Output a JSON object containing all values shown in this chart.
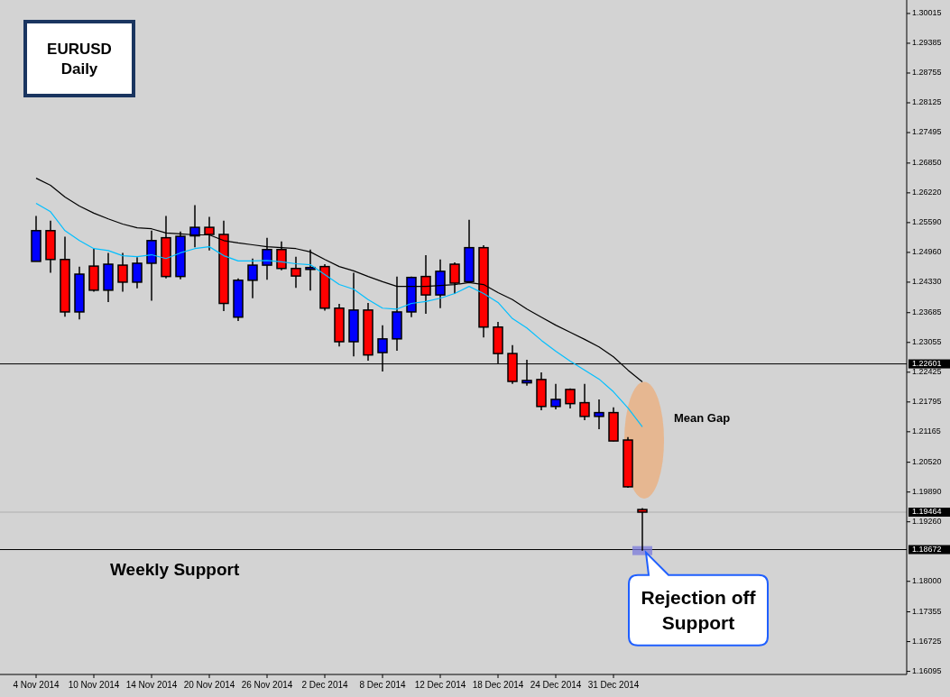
{
  "chart_data": {
    "type": "candlestick",
    "title": "EURUSD",
    "subtitle": "Daily",
    "categories": [
      "4 Nov 2014",
      null,
      null,
      null,
      "10 Nov 2014",
      null,
      null,
      null,
      "14 Nov 2014",
      null,
      null,
      null,
      "20 Nov 2014",
      null,
      null,
      null,
      "26 Nov 2014",
      null,
      null,
      null,
      "2 Dec 2014",
      null,
      null,
      null,
      "8 Dec 2014",
      null,
      null,
      null,
      "12 Dec 2014",
      null,
      null,
      null,
      "18 Dec 2014",
      null,
      null,
      null,
      "24 Dec 2014",
      null,
      null,
      null,
      "31 Dec 2014",
      null,
      null
    ],
    "ohlc": [
      [
        1.2477,
        1.2573,
        1.2477,
        1.2542
      ],
      [
        1.2542,
        1.2563,
        1.2453,
        1.2481
      ],
      [
        1.2481,
        1.2529,
        1.236,
        1.237
      ],
      [
        1.237,
        1.2466,
        1.2354,
        1.245
      ],
      [
        1.2467,
        1.2504,
        1.2413,
        1.2416
      ],
      [
        1.2416,
        1.2495,
        1.2391,
        1.2471
      ],
      [
        1.2469,
        1.2495,
        1.2413,
        1.2433
      ],
      [
        1.2433,
        1.2486,
        1.242,
        1.2473
      ],
      [
        1.2473,
        1.2542,
        1.2394,
        1.2521
      ],
      [
        1.2527,
        1.2573,
        1.2441,
        1.2445
      ],
      [
        1.2445,
        1.254,
        1.2439,
        1.253
      ],
      [
        1.2531,
        1.2596,
        1.2507,
        1.2549
      ],
      [
        1.2549,
        1.2571,
        1.25,
        1.2534
      ],
      [
        1.2534,
        1.2563,
        1.2372,
        1.2388
      ],
      [
        1.2359,
        1.2441,
        1.2351,
        1.2437
      ],
      [
        1.2437,
        1.2483,
        1.2399,
        1.2469
      ],
      [
        1.2469,
        1.2527,
        1.2438,
        1.2502
      ],
      [
        1.2502,
        1.2519,
        1.2458,
        1.2462
      ],
      [
        1.2462,
        1.2487,
        1.2421,
        1.2446
      ],
      [
        1.246,
        1.2502,
        1.2415,
        1.2464
      ],
      [
        1.2466,
        1.2471,
        1.2373,
        1.2378
      ],
      [
        1.2378,
        1.2387,
        1.2297,
        1.2307
      ],
      [
        1.2307,
        1.2453,
        1.2276,
        1.2374
      ],
      [
        1.2374,
        1.2389,
        1.2267,
        1.2279
      ],
      [
        1.2284,
        1.2342,
        1.2244,
        1.2313
      ],
      [
        1.2313,
        1.2445,
        1.2288,
        1.237
      ],
      [
        1.237,
        1.2445,
        1.2359,
        1.2443
      ],
      [
        1.2445,
        1.249,
        1.2366,
        1.2406
      ],
      [
        1.2406,
        1.2481,
        1.2378,
        1.2456
      ],
      [
        1.2471,
        1.2475,
        1.2408,
        1.2431
      ],
      [
        1.2434,
        1.2565,
        1.2434,
        1.2506
      ],
      [
        1.2506,
        1.2511,
        1.2316,
        1.2338
      ],
      [
        1.2338,
        1.2349,
        1.2261,
        1.2282
      ],
      [
        1.2282,
        1.23,
        1.2218,
        1.2223
      ],
      [
        1.222,
        1.2269,
        1.2214,
        1.2225
      ],
      [
        1.2227,
        1.2242,
        1.2162,
        1.217
      ],
      [
        1.217,
        1.2218,
        1.2164,
        1.2185
      ],
      [
        1.2206,
        1.2208,
        1.2166,
        1.2176
      ],
      [
        1.2178,
        1.2218,
        1.2141,
        1.2149
      ],
      [
        1.2149,
        1.2185,
        1.2122,
        1.2157
      ],
      [
        1.2157,
        1.2168,
        1.2096,
        1.2097
      ],
      [
        1.2099,
        1.2105,
        1.1998,
        1.2
      ],
      [
        1.1952,
        1.1955,
        1.1865,
        1.19464
      ]
    ],
    "colors": [
      "#0000ff",
      "#ff0000",
      "#ff0000",
      "#0000ff",
      "#ff0000",
      "#0000ff",
      "#ff0000",
      "#0000ff",
      "#0000ff",
      "#ff0000",
      "#0000ff",
      "#0000ff",
      "#ff0000",
      "#ff0000",
      "#0000ff",
      "#0000ff",
      "#0000ff",
      "#ff0000",
      "#ff0000",
      "#0000ff",
      "#ff0000",
      "#ff0000",
      "#0000ff",
      "#ff0000",
      "#0000ff",
      "#0000ff",
      "#0000ff",
      "#ff0000",
      "#0000ff",
      "#ff0000",
      "#0000ff",
      "#ff0000",
      "#ff0000",
      "#ff0000",
      "#0000ff",
      "#ff0000",
      "#0000ff",
      "#ff0000",
      "#ff0000",
      "#0000ff",
      "#ff0000",
      "#ff0000",
      "#ff0000"
    ],
    "series": [
      {
        "type": "line",
        "color": "#000000",
        "values": [
          1.2653,
          1.2638,
          1.2613,
          1.2594,
          1.2579,
          1.2567,
          1.2556,
          1.2548,
          1.2546,
          1.2537,
          1.2535,
          1.2533,
          1.2533,
          1.2521,
          1.2516,
          1.2512,
          1.2508,
          1.2506,
          1.2504,
          1.2497,
          1.2481,
          1.2466,
          1.2457,
          1.2445,
          1.2434,
          1.2424,
          1.2424,
          1.2424,
          1.2426,
          1.2428,
          1.2432,
          1.2428,
          1.2411,
          1.2396,
          1.2376,
          1.2359,
          1.2342,
          1.2327,
          1.2312,
          1.2296,
          1.2275,
          1.2247,
          1.2222
        ]
      },
      {
        "type": "line",
        "color": "#00bfff",
        "values": [
          1.26,
          1.2582,
          1.2542,
          1.2521,
          1.2504,
          1.25,
          1.2489,
          1.2487,
          1.2491,
          1.2483,
          1.2495,
          1.2504,
          1.2508,
          1.2489,
          1.2478,
          1.2478,
          1.2479,
          1.2476,
          1.2472,
          1.247,
          1.2449,
          1.2428,
          1.2418,
          1.2396,
          1.2378,
          1.2376,
          1.2388,
          1.2392,
          1.2399,
          1.2409,
          1.2424,
          1.2409,
          1.239,
          1.2356,
          1.2336,
          1.231,
          1.2287,
          1.2266,
          1.2247,
          1.2228,
          1.2201,
          1.2167,
          1.2127
        ]
      }
    ],
    "ylim": [
      1.1603,
      1.303
    ],
    "yticks": [
      1.30015,
      1.29385,
      1.28755,
      1.28125,
      1.27495,
      {
        "value": 1.2685,
        "label": "1.26850"
      },
      {
        "value": 1.2622,
        "label": "1.26220"
      },
      {
        "value": 1.2559,
        "label": "1.25590"
      },
      {
        "value": 1.2496,
        "label": "1.24960"
      },
      {
        "value": 1.2433,
        "label": "1.24330"
      },
      1.23685,
      1.23055,
      1.22425,
      1.21795,
      1.21165,
      {
        "value": 1.2052,
        "label": "1.20520"
      },
      {
        "value": 1.1989,
        "label": "1.19890"
      },
      {
        "value": 1.1926,
        "label": "1.19260"
      },
      {
        "value": 1.18,
        "label": "1.18000"
      },
      1.17355,
      1.16725,
      1.16095
    ],
    "ref_lines": [
      {
        "axis": "y",
        "value": 1.22601,
        "label": "1.22601",
        "color": "#000000"
      },
      {
        "axis": "y",
        "value": 1.19464,
        "label": "1.19464",
        "color": "#b0b0b0"
      },
      {
        "axis": "y",
        "value": 1.18672,
        "label": "1.18672",
        "color": "#000000"
      }
    ],
    "annotations": [
      "Mean Gap",
      "Weekly Support",
      "Rejection off Support"
    ]
  }
}
